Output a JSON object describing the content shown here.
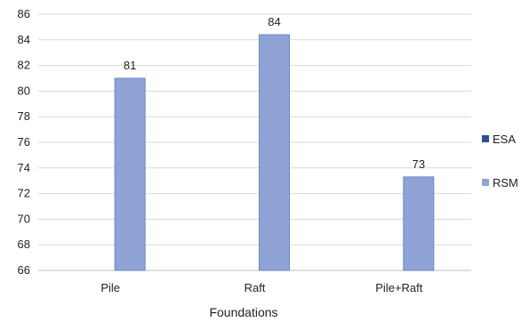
{
  "chart_data": {
    "type": "bar",
    "title": "",
    "xlabel": "Foundations",
    "ylabel": "",
    "categories": [
      "Pile",
      "Raft",
      "Pile+Raft"
    ],
    "series": [
      {
        "name": "ESA",
        "values": [
          66,
          66,
          66
        ],
        "color": "#2f4f8f",
        "labels": [
          "",
          "",
          ""
        ]
      },
      {
        "name": "RSM",
        "values": [
          81,
          84.4,
          73.3
        ],
        "color": "#8fa3d6",
        "labels": [
          "81",
          "84",
          "73"
        ]
      }
    ],
    "ylim": [
      66,
      86
    ],
    "yticks": [
      "66",
      "68",
      "70",
      "72",
      "74",
      "76",
      "78",
      "80",
      "82",
      "84",
      "86"
    ],
    "grid": true,
    "legend": "right"
  }
}
